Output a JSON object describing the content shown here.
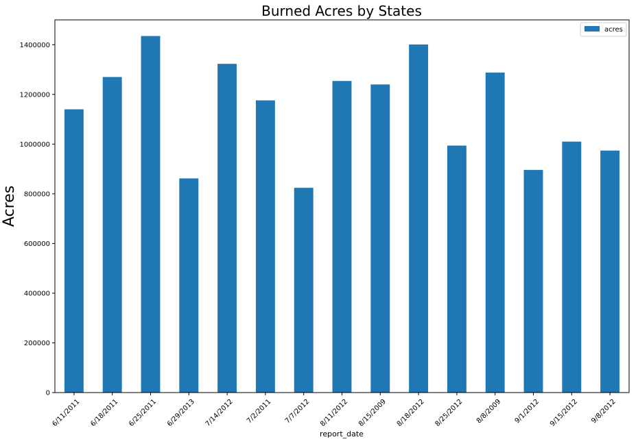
{
  "chart_data": {
    "type": "bar",
    "title": "Burned Acres by States",
    "xlabel": "report_date",
    "ylabel": "Acres",
    "categories": [
      "6/11/2011",
      "6/18/2011",
      "6/25/2011",
      "6/29/2013",
      "7/14/2012",
      "7/2/2011",
      "7/7/2012",
      "8/11/2012",
      "8/15/2009",
      "8/18/2012",
      "8/25/2012",
      "8/8/2009",
      "9/1/2012",
      "9/15/2012",
      "9/8/2012"
    ],
    "series": [
      {
        "name": "acres",
        "values": [
          1140000,
          1270000,
          1435000,
          862000,
          1323000,
          1176000,
          824000,
          1254000,
          1240000,
          1401000,
          994000,
          1288000,
          896000,
          1010000,
          974000
        ]
      }
    ],
    "ylim": [
      0,
      1500000
    ],
    "yticks": [
      0,
      200000,
      400000,
      600000,
      800000,
      1000000,
      1200000,
      1400000
    ],
    "ytick_labels": [
      "0",
      "200000",
      "400000",
      "600000",
      "800000",
      "1000000",
      "1200000",
      "1400000"
    ],
    "grid": false,
    "legend": "top-right",
    "colors": {
      "bar": "#1f77b4",
      "axis": "#000000",
      "legend_border": "#cccccc"
    }
  }
}
